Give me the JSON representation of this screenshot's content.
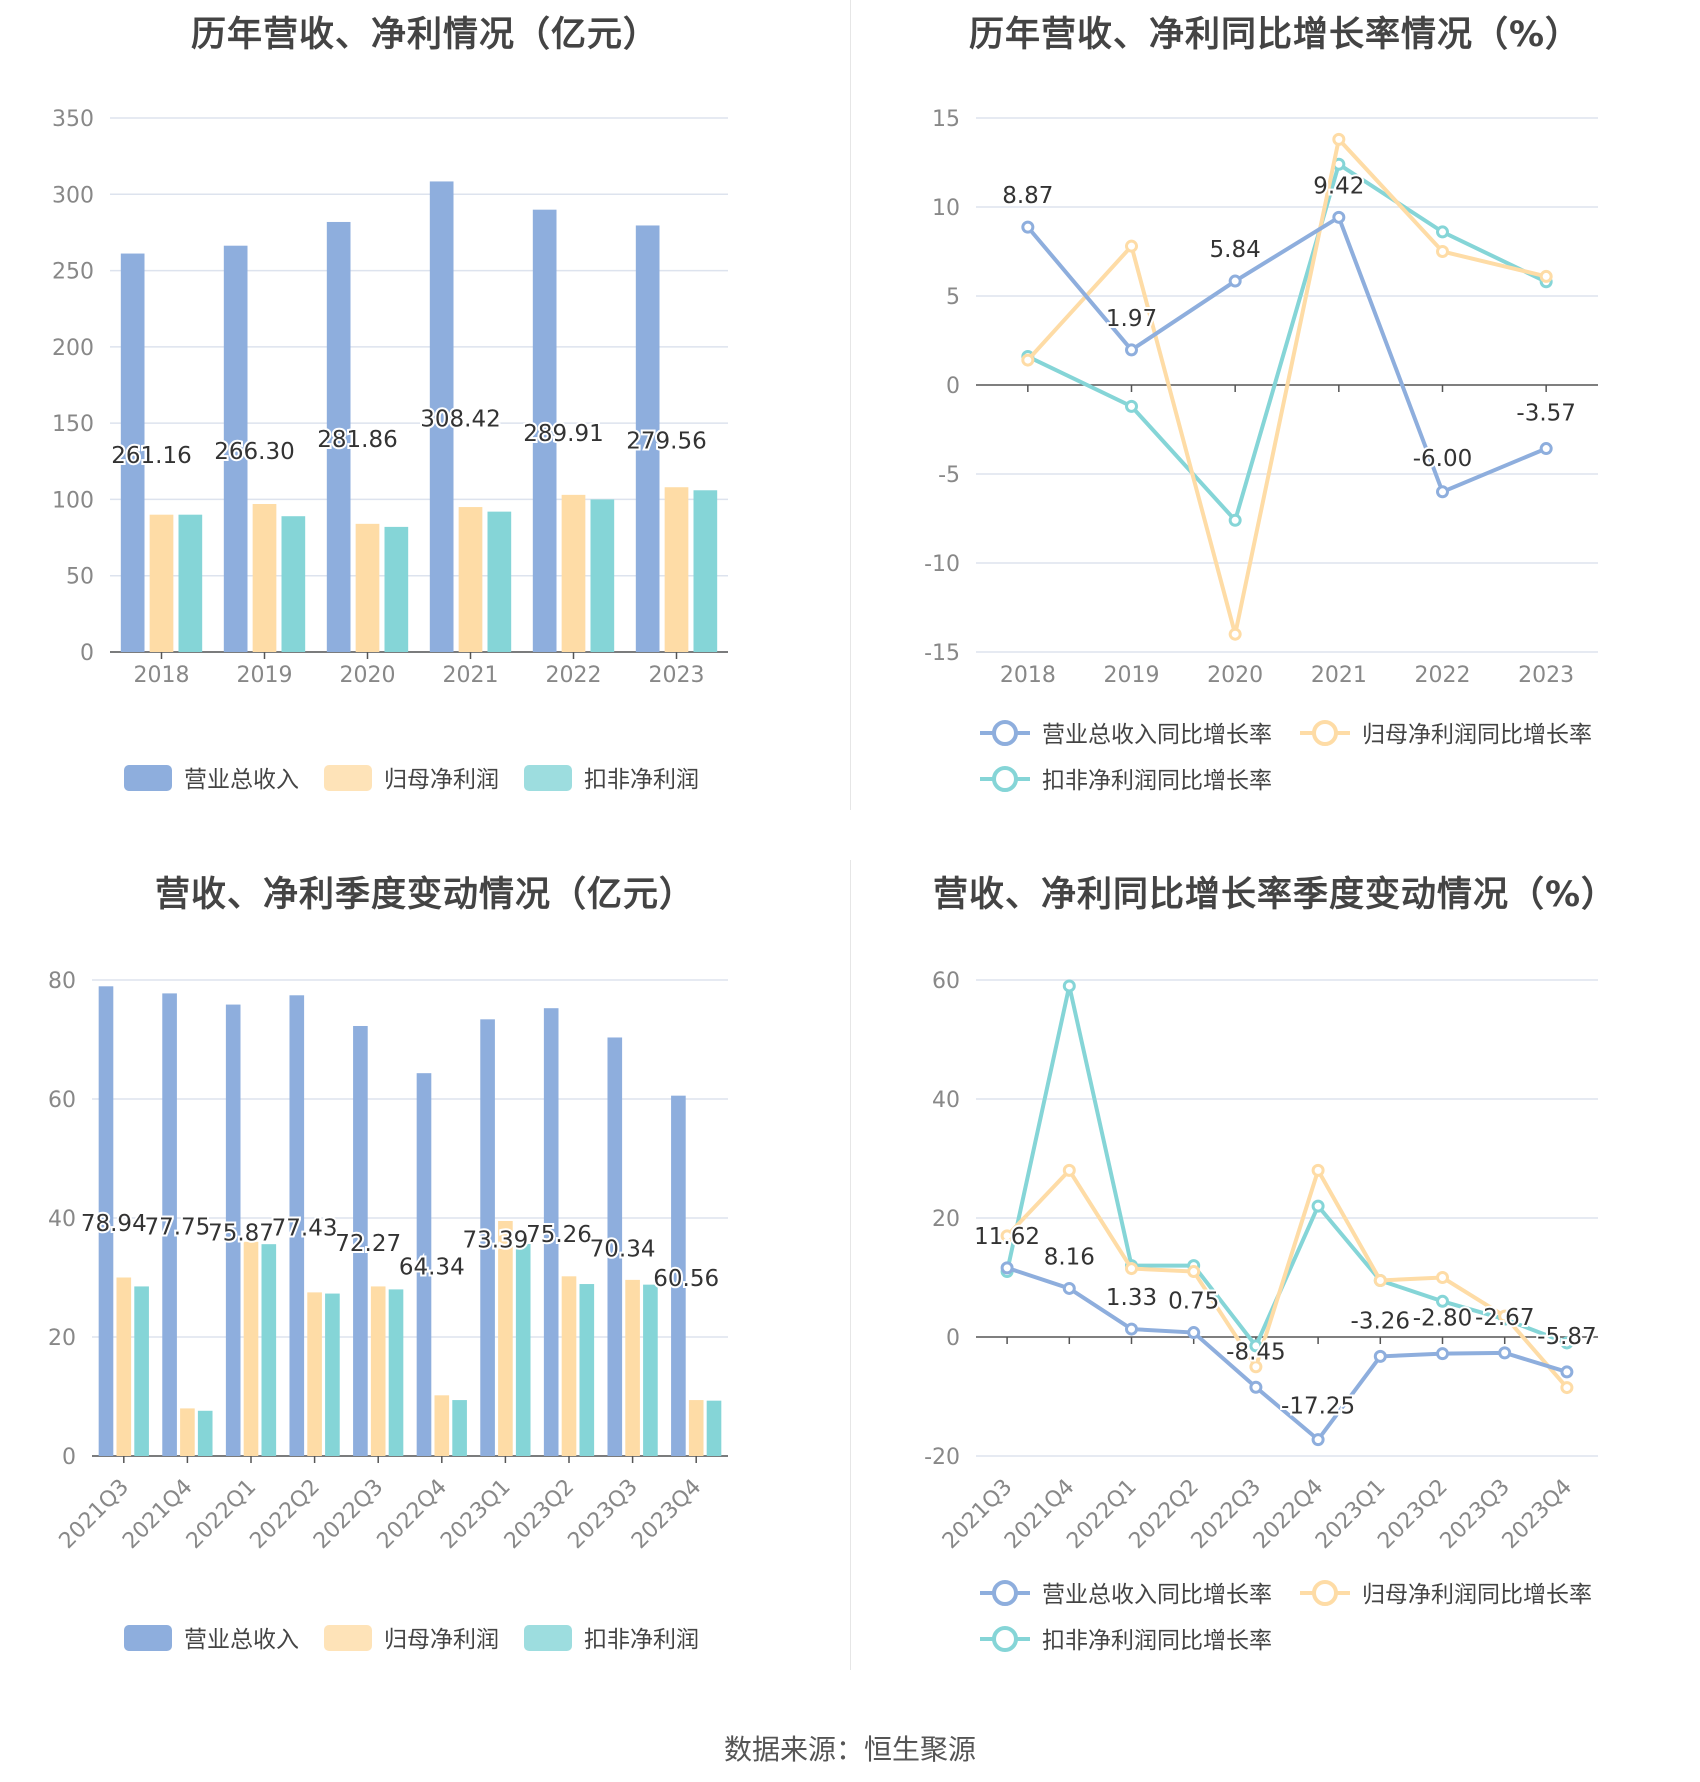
{
  "footer": "数据来源：恒生聚源",
  "colors": {
    "revenue": "#8eaedd",
    "net_profit": "#fedca6",
    "deducted_profit": "#85d5d7",
    "grid": "#dde3ee",
    "axis": "#555555",
    "tick_text": "#888888",
    "label_text": "#333333"
  },
  "chart_data": [
    {
      "type": "bar",
      "title": "历年营收、净利情况（亿元）",
      "categories": [
        "2018",
        "2019",
        "2020",
        "2021",
        "2022",
        "2023"
      ],
      "ylim": [
        0,
        350
      ],
      "yticks": [
        0,
        50,
        100,
        150,
        200,
        250,
        300,
        350
      ],
      "series": [
        {
          "name": "营业总收入",
          "values": [
            261.16,
            266.3,
            281.86,
            308.42,
            289.91,
            279.56
          ],
          "labels": [
            "261.16",
            "266.30",
            "281.86",
            "308.42",
            "289.91",
            "279.56"
          ]
        },
        {
          "name": "归母净利润",
          "values": [
            90,
            97,
            84,
            95,
            103,
            108
          ]
        },
        {
          "name": "扣非净利润",
          "values": [
            90,
            89,
            82,
            92,
            100,
            106
          ]
        }
      ],
      "legend": "bottom"
    },
    {
      "type": "line",
      "title": "历年营收、净利同比增长率情况（%）",
      "categories": [
        "2018",
        "2019",
        "2020",
        "2021",
        "2022",
        "2023"
      ],
      "ylim": [
        -15,
        15
      ],
      "yticks": [
        -15,
        -10,
        -5,
        0,
        5,
        10,
        15
      ],
      "series": [
        {
          "name": "营业总收入同比增长率",
          "values": [
            8.87,
            1.97,
            5.84,
            9.42,
            -6.0,
            -3.57
          ],
          "labels": [
            "8.87",
            "1.97",
            "5.84",
            "9.42",
            "-6.00",
            "-3.57"
          ]
        },
        {
          "name": "归母净利润同比增长率",
          "values": [
            1.4,
            7.8,
            -14.0,
            13.8,
            7.5,
            6.1
          ]
        },
        {
          "name": "扣非净利润同比增长率",
          "values": [
            1.6,
            -1.2,
            -7.6,
            12.4,
            8.6,
            5.8
          ]
        }
      ],
      "legend": "bottom"
    },
    {
      "type": "bar",
      "title": "营收、净利季度变动情况（亿元）",
      "categories": [
        "2021Q3",
        "2021Q4",
        "2022Q1",
        "2022Q2",
        "2022Q3",
        "2022Q4",
        "2023Q1",
        "2023Q2",
        "2023Q3",
        "2023Q4"
      ],
      "ylim": [
        0,
        80
      ],
      "yticks": [
        0,
        20,
        40,
        60,
        80
      ],
      "series": [
        {
          "name": "营业总收入",
          "values": [
            78.94,
            77.75,
            75.87,
            77.43,
            72.27,
            64.34,
            73.39,
            75.26,
            70.34,
            60.56
          ],
          "labels": [
            "78.94",
            "77.75",
            "75.87",
            "77.43",
            "72.27",
            "64.34",
            "73.39",
            "75.26",
            "70.34",
            "60.56"
          ]
        },
        {
          "name": "归母净利润",
          "values": [
            30.0,
            8.0,
            36.0,
            27.5,
            28.5,
            10.2,
            39.5,
            30.2,
            29.6,
            9.4
          ]
        },
        {
          "name": "扣非净利润",
          "values": [
            28.5,
            7.6,
            35.6,
            27.3,
            28.0,
            9.4,
            35.9,
            28.9,
            28.8,
            9.3
          ]
        }
      ],
      "legend": "bottom"
    },
    {
      "type": "line",
      "title": "营收、净利同比增长率季度变动情况（%）",
      "categories": [
        "2021Q3",
        "2021Q4",
        "2022Q1",
        "2022Q2",
        "2022Q3",
        "2022Q4",
        "2023Q1",
        "2023Q2",
        "2023Q3",
        "2023Q4"
      ],
      "ylim": [
        -20,
        60
      ],
      "yticks": [
        -20,
        0,
        20,
        40,
        60
      ],
      "series": [
        {
          "name": "营业总收入同比增长率",
          "values": [
            11.62,
            8.16,
            1.33,
            0.75,
            -8.45,
            -17.25,
            -3.26,
            -2.8,
            -2.67,
            -5.87
          ],
          "labels": [
            "11.62",
            "8.16",
            "1.33",
            "0.75",
            "-8.45",
            "-17.25",
            "-3.26",
            "-2.80",
            "-2.67",
            "-5.87"
          ]
        },
        {
          "name": "归母净利润同比增长率",
          "values": [
            17.0,
            28.0,
            11.5,
            11.0,
            -5.0,
            28.0,
            9.5,
            10.0,
            3.5,
            -8.5
          ]
        },
        {
          "name": "扣非净利润同比增长率",
          "values": [
            11.0,
            59.0,
            12.0,
            12.0,
            -1.5,
            22.0,
            9.5,
            6.0,
            3.0,
            -1.0
          ]
        }
      ],
      "legend": "bottom"
    }
  ]
}
